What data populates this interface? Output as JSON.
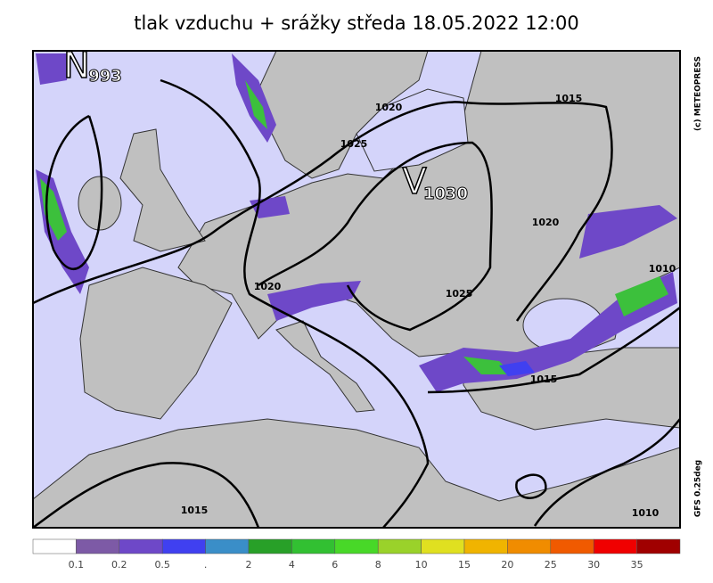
{
  "header": {
    "title": "tlak vzduchu + srážky  středa 18.05.2022 12:00"
  },
  "credits": {
    "copyright": "(c) METEOPRESS",
    "model": "GFS 0.25deg"
  },
  "centers": [
    {
      "symbol": "N",
      "value": "993"
    },
    {
      "symbol": "V",
      "value": "1030"
    }
  ],
  "isobar_labels": [
    "1020",
    "1025",
    "1015",
    "1020",
    "1020",
    "1025",
    "1010",
    "1015",
    "1015",
    "1010"
  ],
  "legend": {
    "colors": [
      "#ffffff",
      "#7d5aa6",
      "#6e48c8",
      "#4040f0",
      "#3a8ec8",
      "#28a028",
      "#32c032",
      "#48d828",
      "#9ad22a",
      "#e0e020",
      "#f0b400",
      "#f08c00",
      "#f05a00",
      "#f00000",
      "#a00000"
    ],
    "labels": [
      "0.1",
      "0.2",
      "0.5",
      ".",
      "2",
      "4",
      "6",
      "8",
      "10",
      "15",
      "20",
      "25",
      "30",
      "35"
    ]
  }
}
